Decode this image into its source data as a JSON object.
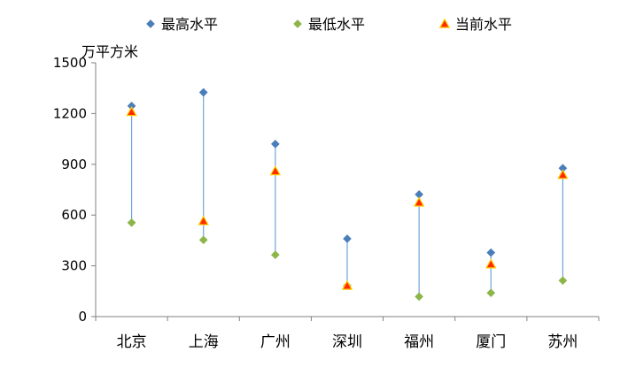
{
  "chart_data": {
    "type": "scatter",
    "ylabel": "万平方米",
    "ylim": [
      0,
      1500
    ],
    "yticks": [
      0,
      300,
      600,
      900,
      1200,
      1500
    ],
    "categories": [
      "北京",
      "上海",
      "广州",
      "深圳",
      "福州",
      "厦门",
      "苏州"
    ],
    "series": [
      {
        "name": "最高水平",
        "marker": "diamond",
        "color": "#4a7ebb",
        "values": [
          1245,
          1325,
          1020,
          460,
          722,
          378,
          877
        ]
      },
      {
        "name": "最低水平",
        "marker": "diamond",
        "color": "#8db64a",
        "values": [
          555,
          453,
          365,
          183,
          118,
          140,
          213
        ]
      },
      {
        "name": "当前水平",
        "marker": "triangle",
        "color": "#ff2a00",
        "values": [
          1210,
          565,
          860,
          183,
          675,
          310,
          838
        ]
      }
    ],
    "range_line_color": "#6fa4d8",
    "axis_color": "#808080",
    "grid": false,
    "legend_position": "top"
  }
}
